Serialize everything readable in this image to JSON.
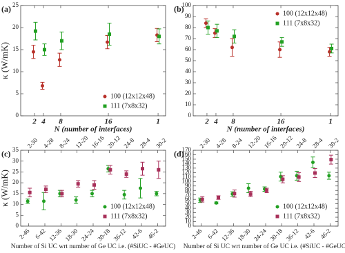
{
  "chart_data": [
    {
      "type": "errorbar",
      "label": "(a)",
      "ylabel": "κ (W/mK)",
      "xlabel": "N (number of interfaces)",
      "categories": [
        "2",
        "4",
        "8",
        "16",
        "1"
      ],
      "ylim": [
        0,
        25
      ],
      "yticks": [
        0,
        5,
        10,
        15,
        20,
        25
      ],
      "legend": "lower right",
      "series": [
        {
          "name": "100 (12x12x48)",
          "color": "#b8312a",
          "marker": "circle",
          "values": [
            14.5,
            6.8,
            12.7,
            16.7,
            18.3
          ],
          "errors": [
            1.5,
            0.8,
            1.5,
            1.5,
            1.5
          ]
        },
        {
          "name": "111 (7x8x32)",
          "color": "#22a022",
          "marker": "square",
          "values": [
            19.2,
            15,
            17,
            18.5,
            18
          ],
          "errors": [
            2,
            1.3,
            2,
            2.5,
            1.7
          ]
        }
      ]
    },
    {
      "type": "errorbar",
      "label": "(b)",
      "xlabel": "N (number of interfaces)",
      "categories": [
        "2",
        "4",
        "8",
        "16",
        "1"
      ],
      "ylim": [
        0,
        100
      ],
      "yticks": [
        0,
        10,
        20,
        30,
        40,
        50,
        60,
        70,
        80,
        90,
        100
      ],
      "legend": "upper right",
      "series": [
        {
          "name": "100 (12x12x48)",
          "color": "#b8312a",
          "marker": "circle",
          "values": [
            84,
            75,
            62,
            60,
            58
          ],
          "errors": [
            4,
            4,
            8,
            7,
            4
          ]
        },
        {
          "name": "111 (7x8x32)",
          "color": "#22a022",
          "marker": "square",
          "values": [
            80,
            77,
            72,
            67,
            61
          ],
          "errors": [
            6,
            6,
            6,
            4,
            4
          ]
        }
      ]
    },
    {
      "type": "errorbar",
      "label": "(c)",
      "ylabel": "κ (W/mK)",
      "xlabel": "Number of Si UC wrt number of Ge UC i.e. (#SiUC - #GeUC)",
      "categories": [
        "2-46",
        "6-42",
        "12-36",
        "18-30",
        "24-24",
        "30-18",
        "36-12",
        "42-6",
        "46-2"
      ],
      "x2_categories": [
        "2-30",
        "4-28",
        "8-24",
        "12-20",
        "16-16",
        "20-12",
        "24-8",
        "28-4",
        "30-2"
      ],
      "ylim": [
        0,
        35
      ],
      "yticks": [
        0,
        5,
        10,
        15,
        20,
        25,
        30,
        35
      ],
      "legend": "lower right",
      "series": [
        {
          "name": "100 (12x12x48)",
          "color": "#22a022",
          "marker": "circle",
          "values": [
            11.5,
            11.5,
            15,
            12,
            15,
            26.5,
            14.5,
            17.5,
            15
          ],
          "errors": [
            1,
            4,
            1.5,
            1.5,
            1.5,
            1.5,
            2,
            4.5,
            1
          ]
        },
        {
          "name": "111 (7x8x32)",
          "color": "#a8305a",
          "marker": "square",
          "values": [
            15.5,
            17,
            15,
            19.5,
            19,
            26,
            24,
            26.5,
            26
          ],
          "errors": [
            2,
            1.5,
            1.5,
            1.5,
            2,
            2,
            1.5,
            3,
            4
          ]
        }
      ]
    },
    {
      "type": "errorbar",
      "label": "(d)",
      "xlabel": "Number of Si UC wrt number of Ge UC i.e. (#SiUC - #GeUC)",
      "categories": [
        "2-46",
        "6-42",
        "12-36",
        "18-30",
        "24-24",
        "30-18",
        "36-12",
        "42-6",
        "46-2"
      ],
      "x2_categories": [
        "2-30",
        "4-28",
        "8-24",
        "12-20",
        "16-16",
        "20-12",
        "24-8",
        "28-4",
        "30-2"
      ],
      "ylim": [
        0,
        170
      ],
      "yticks": [
        0,
        10,
        20,
        30,
        40,
        50,
        60,
        70,
        80,
        90,
        100,
        110,
        120,
        130,
        140,
        150,
        160,
        170
      ],
      "legend": "lower right",
      "series": [
        {
          "name": "100 (12x12x48)",
          "color": "#22a022",
          "marker": "circle",
          "values": [
            58,
            52,
            72,
            85,
            83,
            111,
            113,
            143,
            113
          ],
          "errors": [
            5,
            2,
            5,
            10,
            5,
            10,
            10,
            12,
            8
          ]
        },
        {
          "name": "111 (7x8x32)",
          "color": "#a8305a",
          "marker": "square",
          "values": [
            60,
            64,
            73,
            72,
            80,
            105,
            110,
            119,
            149
          ],
          "errors": [
            6,
            4,
            8,
            6,
            5,
            8,
            10,
            10,
            10
          ]
        }
      ]
    }
  ]
}
